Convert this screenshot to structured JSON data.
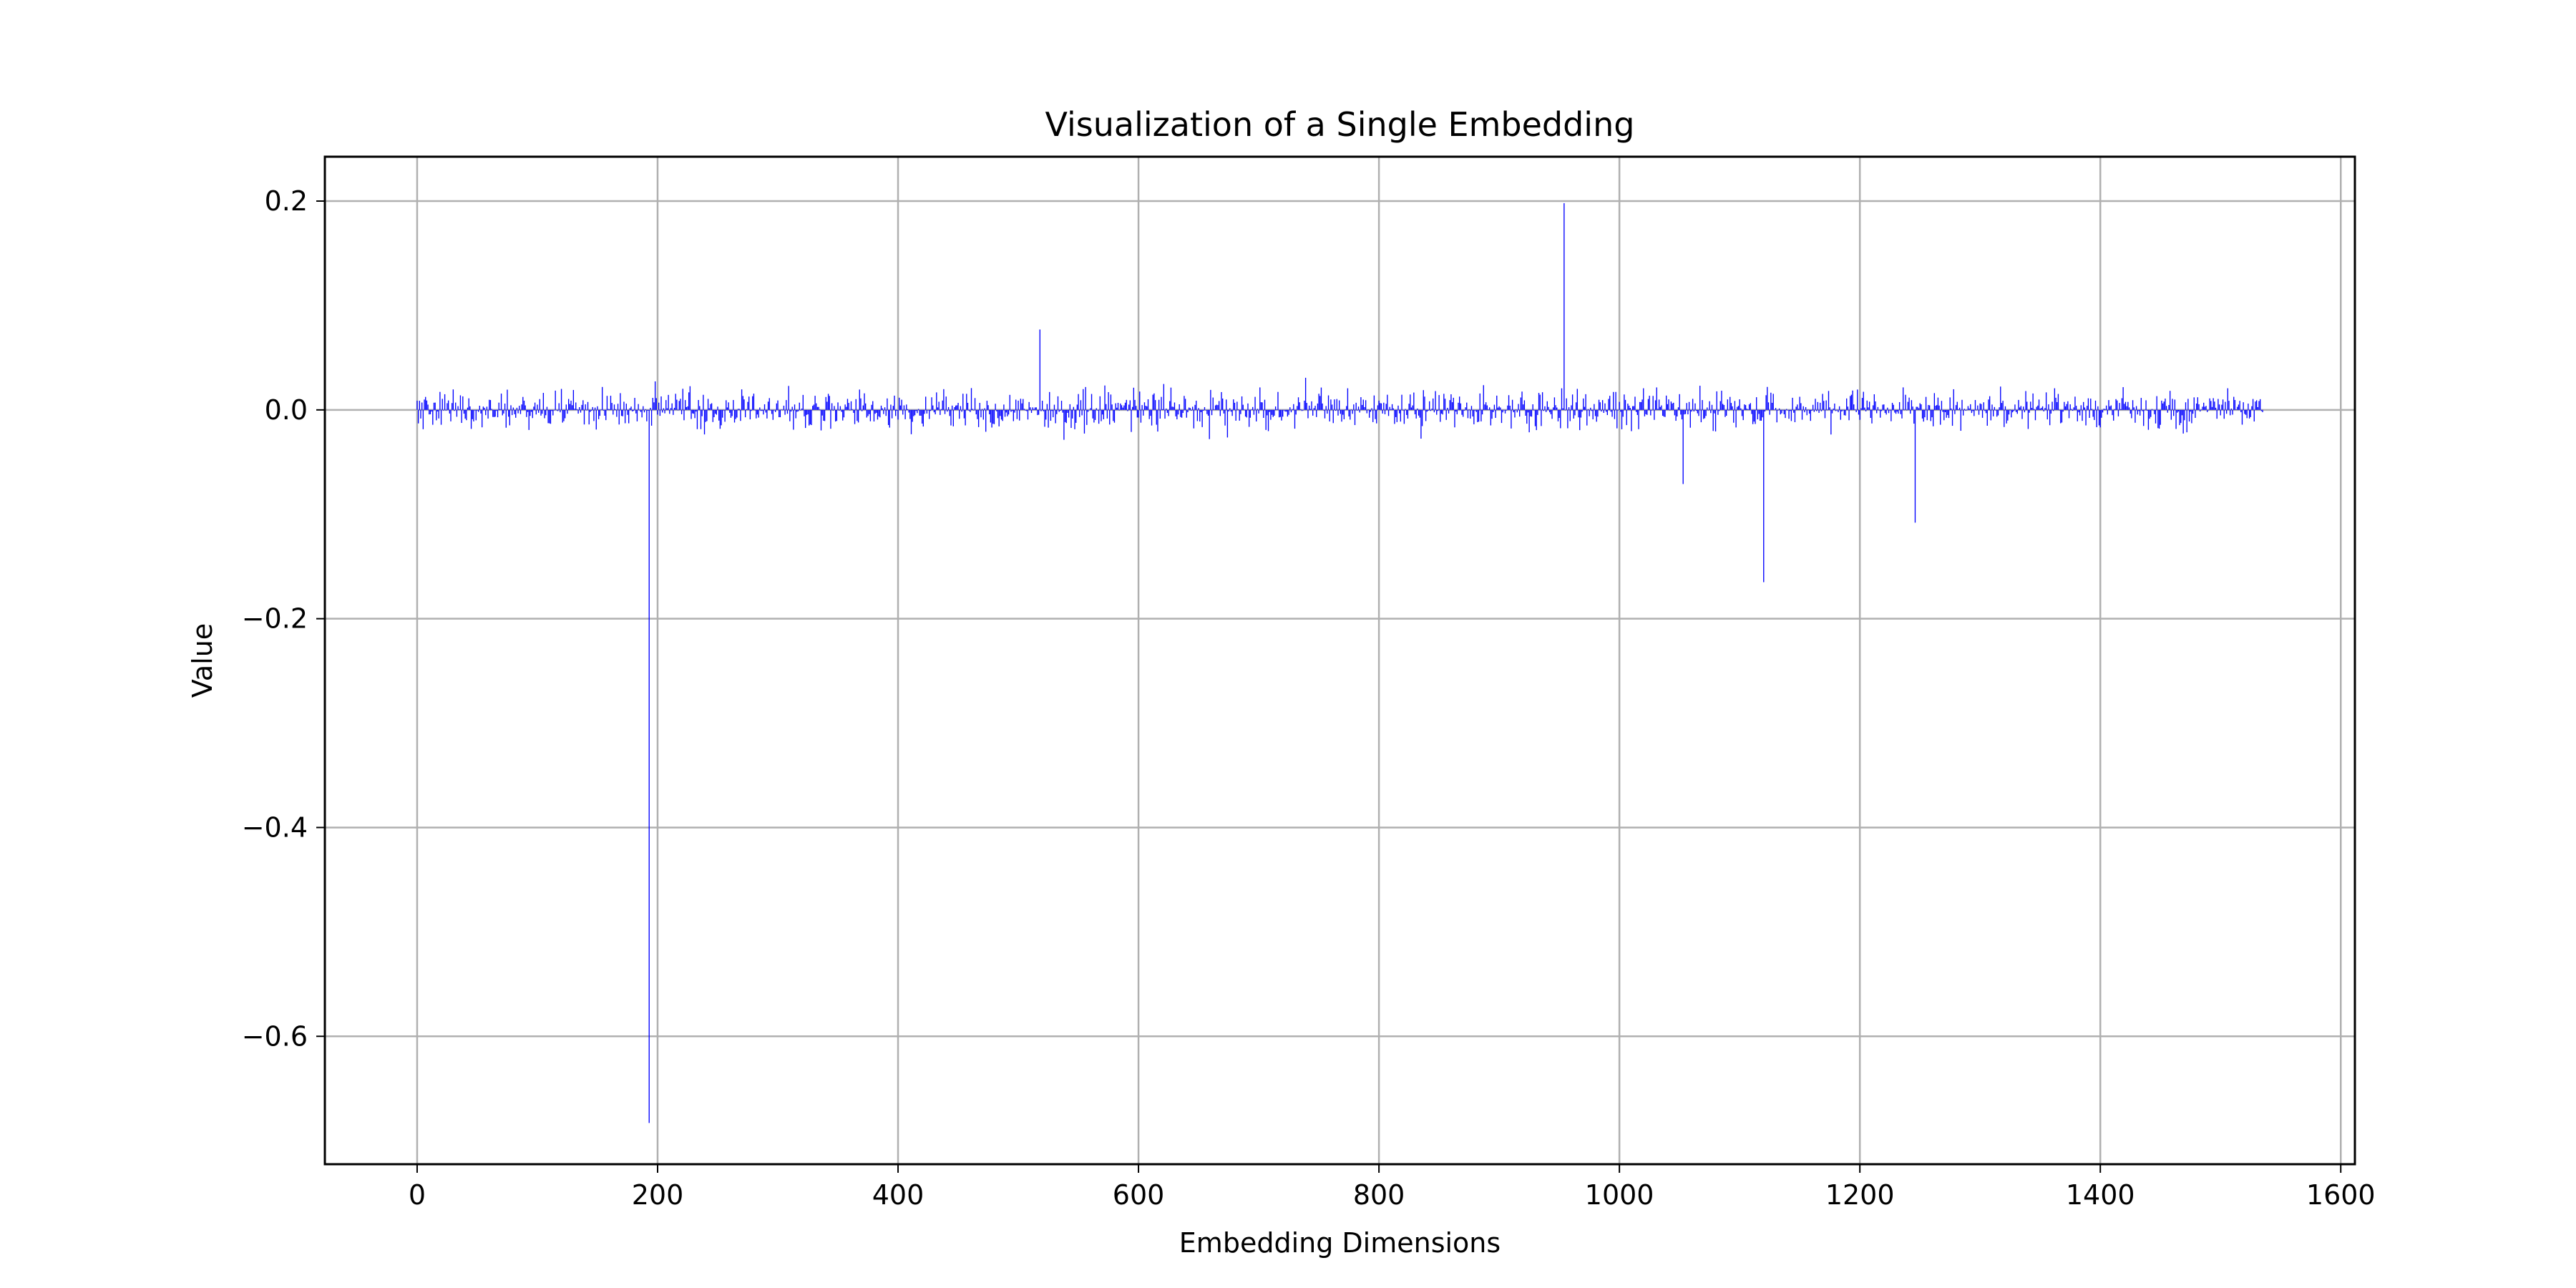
{
  "chart_data": {
    "type": "bar",
    "title": "Visualization of a Single Embedding",
    "xlabel": "Embedding Dimensions",
    "ylabel": "Value",
    "xlim": [
      -76.75,
      1611.75
    ],
    "ylim": [
      -0.7225,
      0.2425
    ],
    "xticks": [
      0,
      200,
      400,
      600,
      800,
      1000,
      1200,
      1400,
      1600
    ],
    "xtick_labels": [
      "0",
      "200",
      "400",
      "600",
      "800",
      "1000",
      "1200",
      "1400",
      "1600"
    ],
    "yticks": [
      0.2,
      0.0,
      -0.2,
      -0.4,
      -0.6
    ],
    "ytick_labels": [
      "0.2",
      "0.0",
      "−0.2",
      "−0.4",
      "−0.6"
    ],
    "grid": true,
    "bar_color": "#0000ff",
    "n_dimensions": 1536,
    "notable_values": [
      {
        "x": 193,
        "y": -0.683
      },
      {
        "x": 518,
        "y": 0.077
      },
      {
        "x": 954,
        "y": 0.198
      },
      {
        "x": 1053,
        "y": -0.071
      },
      {
        "x": 1120,
        "y": -0.165
      },
      {
        "x": 1246,
        "y": -0.108
      }
    ]
  }
}
